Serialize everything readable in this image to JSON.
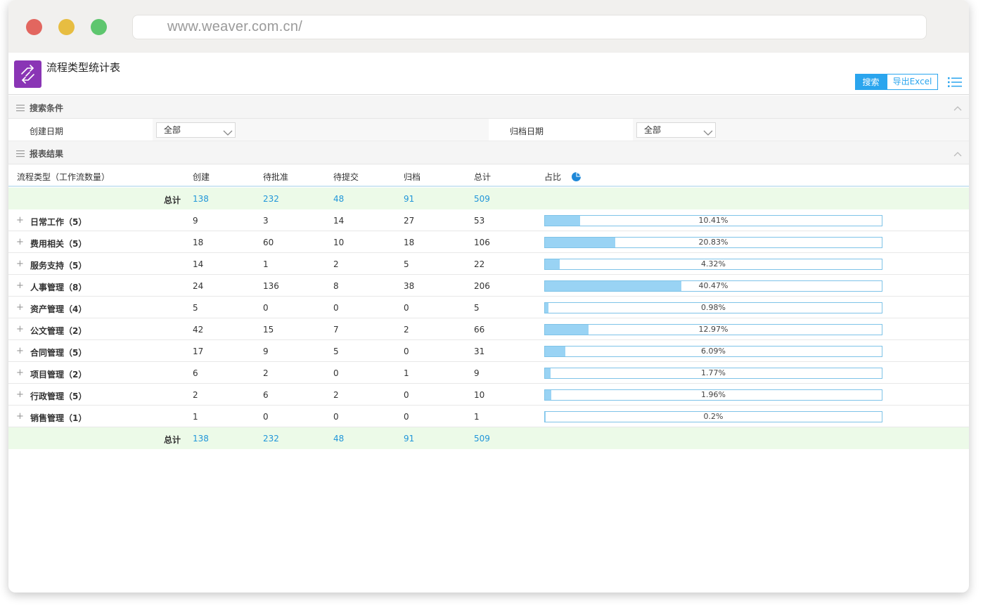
{
  "browser": {
    "url": "www.weaver.com.cn/"
  },
  "header": {
    "title": "流程类型统计表",
    "search_label": "搜索",
    "export_label": "导出Excel"
  },
  "search_section": {
    "title": "搜索条件",
    "create_date_label": "创建日期",
    "create_date_value": "全部",
    "archive_date_label": "归档日期",
    "archive_date_value": "全部"
  },
  "result_section": {
    "title": "报表结果"
  },
  "table": {
    "columns": [
      "流程类型（工作流数量）",
      "创建",
      "待批准",
      "待提交",
      "归档",
      "总计",
      "占比"
    ],
    "total_label": "总计",
    "totals": [
      "138",
      "232",
      "48",
      "91",
      "509"
    ],
    "rows": [
      {
        "name": "日常工作（5）",
        "values": [
          "9",
          "3",
          "14",
          "27",
          "53"
        ],
        "percent_label": "10.41%",
        "percent": 10.41
      },
      {
        "name": "费用相关（5）",
        "values": [
          "18",
          "60",
          "10",
          "18",
          "106"
        ],
        "percent_label": "20.83%",
        "percent": 20.83
      },
      {
        "name": "服务支持（5）",
        "values": [
          "14",
          "1",
          "2",
          "5",
          "22"
        ],
        "percent_label": "4.32%",
        "percent": 4.32
      },
      {
        "name": "人事管理（8）",
        "values": [
          "24",
          "136",
          "8",
          "38",
          "206"
        ],
        "percent_label": "40.47%",
        "percent": 40.47
      },
      {
        "name": "资产管理（4）",
        "values": [
          "5",
          "0",
          "0",
          "0",
          "5"
        ],
        "percent_label": "0.98%",
        "percent": 0.98
      },
      {
        "name": "公文管理（2）",
        "values": [
          "42",
          "15",
          "7",
          "2",
          "66"
        ],
        "percent_label": "12.97%",
        "percent": 12.97
      },
      {
        "name": "合同管理（5）",
        "values": [
          "17",
          "9",
          "5",
          "0",
          "31"
        ],
        "percent_label": "6.09%",
        "percent": 6.09
      },
      {
        "name": "项目管理（2）",
        "values": [
          "6",
          "2",
          "0",
          "1",
          "9"
        ],
        "percent_label": "1.77%",
        "percent": 1.77
      },
      {
        "name": "行政管理（5）",
        "values": [
          "2",
          "6",
          "2",
          "0",
          "10"
        ],
        "percent_label": "1.96%",
        "percent": 1.96
      },
      {
        "name": "销售管理（1）",
        "values": [
          "1",
          "0",
          "0",
          "0",
          "1"
        ],
        "percent_label": "0.2%",
        "percent": 0.2
      }
    ]
  },
  "colors": {
    "accent": "#2aa5ee",
    "bar_fill": "#99d3f4",
    "total_row_bg": "#ecfae8",
    "app_icon": "#8a35b5"
  },
  "icons": [
    "app-icon",
    "list-menu-icon",
    "menu-lines-icon",
    "chevron-up-icon",
    "chevron-down-icon",
    "pie-chart-icon",
    "expand-plus-icon"
  ]
}
